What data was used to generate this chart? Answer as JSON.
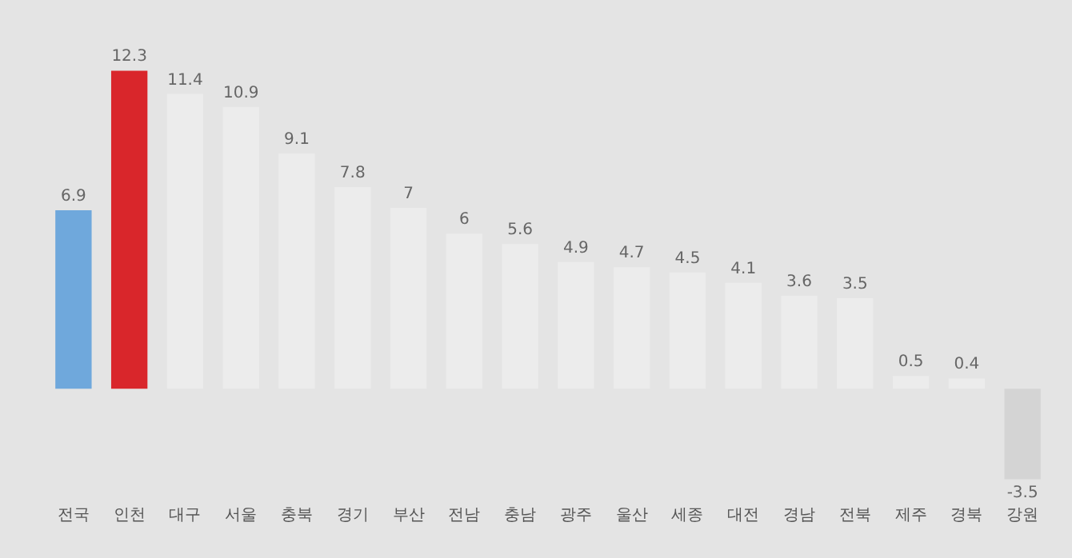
{
  "chart_data": {
    "type": "bar",
    "data_labels": true,
    "legend": false,
    "categories": [
      "전국",
      "인천",
      "대구",
      "서울",
      "충북",
      "경기",
      "부산",
      "전남",
      "충남",
      "광주",
      "울산",
      "세종",
      "대전",
      "경남",
      "전북",
      "제주",
      "경북",
      "강원"
    ],
    "values": [
      6.9,
      12.3,
      11.4,
      10.9,
      9.1,
      7.8,
      7,
      6,
      5.6,
      4.9,
      4.7,
      4.5,
      4.1,
      3.6,
      3.5,
      0.5,
      0.4,
      -3.5
    ],
    "colors": [
      "#6fa8dc",
      "#d9262b",
      "#ececec",
      "#ececec",
      "#ececec",
      "#ececec",
      "#ececec",
      "#ececec",
      "#ececec",
      "#ececec",
      "#ececec",
      "#ececec",
      "#ececec",
      "#ececec",
      "#ececec",
      "#ececec",
      "#ececec",
      "#d4d4d4"
    ]
  }
}
